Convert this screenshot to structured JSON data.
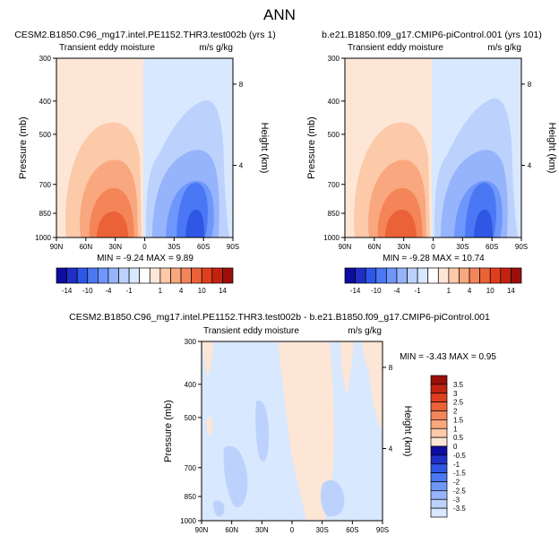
{
  "page_title": "ANN",
  "colors": {
    "neg": [
      "#0d0d9f",
      "#1f2fc6",
      "#2f57e6",
      "#4a78f5",
      "#6f97fb",
      "#96b4fc",
      "#bcd2fd",
      "#d8e8fe"
    ],
    "pos": [
      "#fde6d6",
      "#fcc9a9",
      "#f9a77e",
      "#f48559",
      "#ec6238",
      "#df3f1f",
      "#c2230f",
      "#9a0f0a"
    ]
  },
  "chart_data": [
    {
      "type": "contour",
      "title": "CESM2.B1850.C96_mg17.intel.PE1152.THR3.test002b (yrs 1)",
      "subtitle_left": "Transient eddy moisture",
      "subtitle_right": "m/s g/kg",
      "xlabel": "",
      "ylabel": "Pressure (mb)",
      "ylabel_right": "Height (km)",
      "x_ticks": [
        "90N",
        "60N",
        "30N",
        "0",
        "30S",
        "60S",
        "90S"
      ],
      "y_ticks": [
        "300",
        "400",
        "500",
        "700",
        "850",
        "1000"
      ],
      "y_ticks_right": [
        "8",
        "4"
      ],
      "min": -9.24,
      "max": 9.89,
      "stats": "MIN = -9.24  MAX = 9.89"
    },
    {
      "type": "contour",
      "title": "b.e21.B1850.f09_g17.CMIP6-piControl.001 (yrs 101)",
      "subtitle_left": "Transient eddy moisture",
      "subtitle_right": "m/s g/kg",
      "xlabel": "",
      "ylabel": "Pressure (mb)",
      "ylabel_right": "Height (km)",
      "x_ticks": [
        "90N",
        "60N",
        "30N",
        "0",
        "30S",
        "60S",
        "90S"
      ],
      "y_ticks": [
        "300",
        "400",
        "500",
        "700",
        "850",
        "1000"
      ],
      "y_ticks_right": [
        "8",
        "4"
      ],
      "min": -9.28,
      "max": 10.74,
      "stats": "MIN = -9.28  MAX = 10.74"
    },
    {
      "type": "contour",
      "title": "CESM2.B1850.C96_mg17.intel.PE1152.THR3.test002b - b.e21.B1850.f09_g17.CMIP6-piControl.001",
      "subtitle_left": "Transient eddy moisture",
      "subtitle_right": "m/s g/kg",
      "xlabel": "",
      "ylabel": "Pressure (mb)",
      "ylabel_right": "Height (km)",
      "x_ticks": [
        "90N",
        "60N",
        "30N",
        "0",
        "30S",
        "60S",
        "90S"
      ],
      "y_ticks": [
        "300",
        "400",
        "500",
        "700",
        "850",
        "1000"
      ],
      "y_ticks_right": [
        "8",
        "4"
      ],
      "min": -3.43,
      "max": 0.95,
      "stats": "MIN = -3.43  MAX = 0.95"
    }
  ],
  "colorbar_top": {
    "labels": [
      "-14",
      "-10",
      "-4",
      "-1",
      "1",
      "4",
      "10",
      "14"
    ]
  },
  "colorbar_diff": {
    "labels": [
      "3.5",
      "3",
      "2.5",
      "2",
      "1.5",
      "1",
      "0.5",
      "0",
      "-0.5",
      "-1",
      "-1.5",
      "-2",
      "-2.5",
      "-3",
      "-3.5"
    ]
  }
}
